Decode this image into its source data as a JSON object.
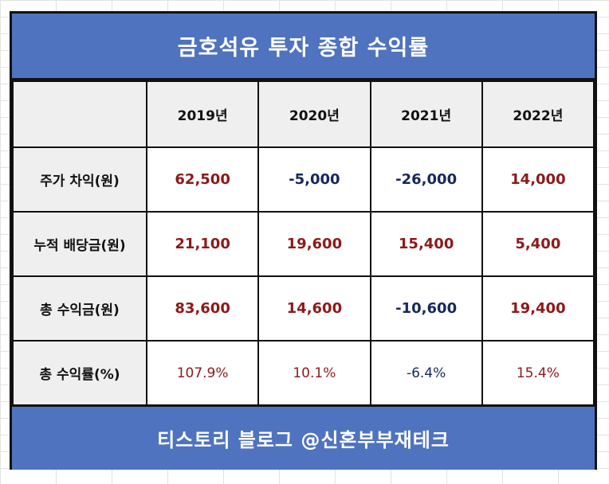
{
  "title": "금호석유 투자 종합 수익률",
  "footer": "티스토리 블로그 @신혼부부재테크",
  "colors": {
    "banner": "#4f73be",
    "positive": "#8b1a1a",
    "negative": "#16285e"
  },
  "years": [
    "2019년",
    "2020년",
    "2021년",
    "2022년"
  ],
  "rows": [
    {
      "label": "주가 차익(원)",
      "values": [
        "62,500",
        "-5,000",
        "-26,000",
        "14,000"
      ]
    },
    {
      "label": "누적 배당금(원)",
      "values": [
        "21,100",
        "19,600",
        "15,400",
        "5,400"
      ]
    },
    {
      "label": "총 수익금(원)",
      "values": [
        "83,600",
        "14,600",
        "-10,600",
        "19,400"
      ]
    },
    {
      "label": "총 수익률(%)",
      "values": [
        "107.9%",
        "10.1%",
        "-6.4%",
        "15.4%"
      ]
    }
  ]
}
